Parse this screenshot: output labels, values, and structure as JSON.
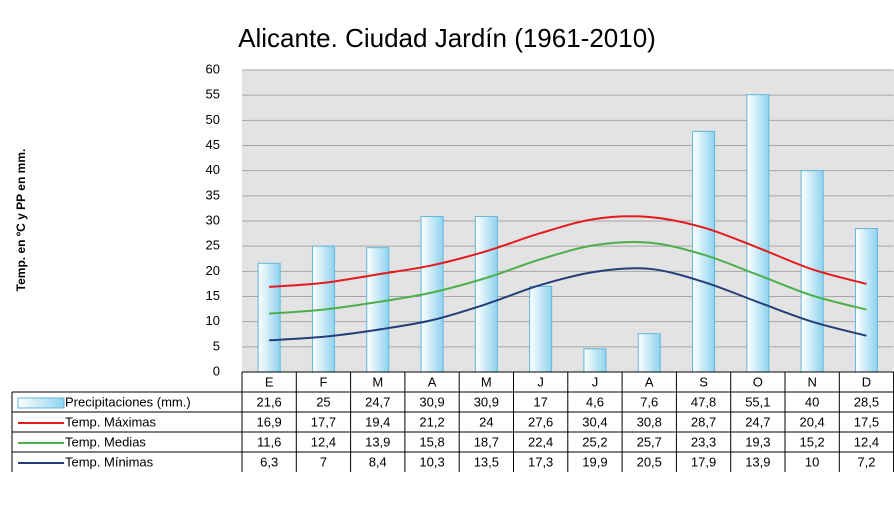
{
  "chart_data": {
    "type": "bar_line_table",
    "title": "Alicante. Ciudad Jardín (1961-2010)",
    "y_label": "Temp. en ºC y PP en mm.",
    "categories": [
      "E",
      "F",
      "M",
      "A",
      "M",
      "J",
      "J",
      "A",
      "S",
      "O",
      "N",
      "D"
    ],
    "ylim": [
      0,
      60
    ],
    "yticks": [
      0,
      5,
      10,
      15,
      20,
      25,
      30,
      35,
      40,
      45,
      50,
      55,
      60
    ],
    "grid": true,
    "series": [
      {
        "name": "Precipitaciones (mm.)",
        "type": "bar",
        "color": "#bfe6f5",
        "values": [
          21.6,
          25,
          24.7,
          30.9,
          30.9,
          17,
          4.6,
          7.6,
          47.8,
          55.1,
          40,
          28.5
        ],
        "value_labels": [
          "21,6",
          "25",
          "24,7",
          "30,9",
          "30,9",
          "17",
          "4,6",
          "7,6",
          "47,8",
          "55,1",
          "40",
          "28,5"
        ]
      },
      {
        "name": "Temp. Máximas",
        "type": "line",
        "color": "#e41a1c",
        "values": [
          16.9,
          17.7,
          19.4,
          21.2,
          24,
          27.6,
          30.4,
          30.8,
          28.7,
          24.7,
          20.4,
          17.5
        ],
        "value_labels": [
          "16,9",
          "17,7",
          "19,4",
          "21,2",
          "24",
          "27,6",
          "30,4",
          "30,8",
          "28,7",
          "24,7",
          "20,4",
          "17,5"
        ]
      },
      {
        "name": "Temp. Medias",
        "type": "line",
        "color": "#4daf4a",
        "values": [
          11.6,
          12.4,
          13.9,
          15.8,
          18.7,
          22.4,
          25.2,
          25.7,
          23.3,
          19.3,
          15.2,
          12.4
        ],
        "value_labels": [
          "11,6",
          "12,4",
          "13,9",
          "15,8",
          "18,7",
          "22,4",
          "25,2",
          "25,7",
          "23,3",
          "19,3",
          "15,2",
          "12,4"
        ]
      },
      {
        "name": "Temp. Mínimas",
        "type": "line",
        "color": "#253e7a",
        "values": [
          6.3,
          7,
          8.4,
          10.3,
          13.5,
          17.3,
          19.9,
          20.5,
          17.9,
          13.9,
          10,
          7.2
        ],
        "value_labels": [
          "6,3",
          "7",
          "8,4",
          "10,3",
          "13,5",
          "17,3",
          "19,9",
          "20,5",
          "17,9",
          "13,9",
          "10",
          "7,2"
        ]
      }
    ]
  }
}
